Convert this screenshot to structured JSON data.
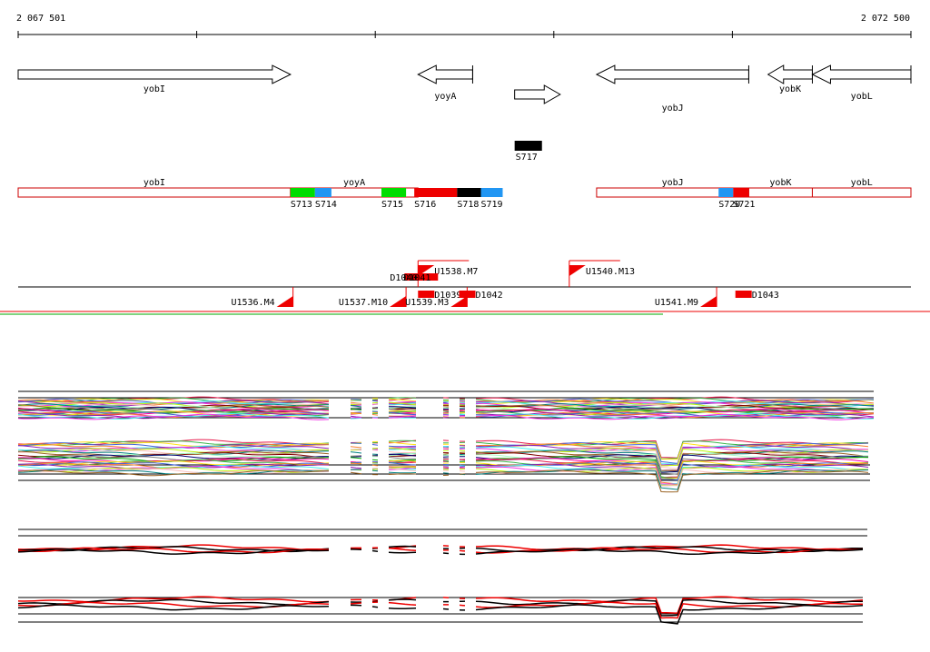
{
  "ruler": {
    "start_label": "2 067 501",
    "end_label": "2 072 500",
    "start": 2067501,
    "end": 2072500
  },
  "genes": [
    {
      "name": "yobI",
      "start": 2067501,
      "end": 2069026,
      "strand": "+"
    },
    {
      "name": "yoyA",
      "start": 2069740,
      "end": 2070046,
      "strand": "-"
    },
    {
      "name": "",
      "start": 2070281,
      "end": 2070536,
      "strand": "+"
    },
    {
      "name": "yobJ",
      "start": 2070740,
      "end": 2071592,
      "strand": "-"
    },
    {
      "name": "yobK",
      "start": 2071700,
      "end": 2071948,
      "strand": "-"
    },
    {
      "name": "yobL",
      "start": 2071948,
      "end": 2072500,
      "strand": "-"
    }
  ],
  "gene_label_rows": {
    "yobI": 0,
    "yoyA": 1,
    "yobJ": 2,
    "yobK": 0,
    "yobL": 1
  },
  "black_feature": {
    "name": "S717",
    "start": 2070281,
    "end": 2070434
  },
  "band_labels": [
    {
      "name": "yobI",
      "start": 2067501,
      "end": 2069026
    },
    {
      "name": "yoyA",
      "start": 2069026,
      "end": 2069740
    },
    {
      "name": "yobJ",
      "start": 2070740,
      "end": 2071592
    },
    {
      "name": "yobK",
      "start": 2071592,
      "end": 2071948
    },
    {
      "name": "yobL",
      "start": 2071948,
      "end": 2072500
    }
  ],
  "segments": [
    {
      "name": "S713",
      "start": 2069026,
      "end": 2069163,
      "color": "#00dd00"
    },
    {
      "name": "S714",
      "start": 2069163,
      "end": 2069255,
      "color": "#2196f3"
    },
    {
      "name": "S715",
      "start": 2069535,
      "end": 2069673,
      "color": "#00dd00"
    },
    {
      "name": "S716",
      "start": 2069719,
      "end": 2069959,
      "color": "#ee0000"
    },
    {
      "name": "S718",
      "start": 2069959,
      "end": 2070092,
      "color": "#000000"
    },
    {
      "name": "S719",
      "start": 2070092,
      "end": 2070214,
      "color": "#2196f3"
    },
    {
      "name": "S720",
      "start": 2071423,
      "end": 2071505,
      "color": "#2196f3"
    },
    {
      "name": "S721",
      "start": 2071505,
      "end": 2071592,
      "color": "#ee0000"
    }
  ],
  "promoters_top": [
    {
      "name": "U1538.M7",
      "pos": 2069740
    },
    {
      "name": "U1540.M13",
      "pos": 2070587
    }
  ],
  "promoters_bottom": [
    {
      "name": "U1536.M4",
      "pos": 2069040
    },
    {
      "name": "U1537.M10",
      "pos": 2069673
    },
    {
      "name": "U1539.M3",
      "pos": 2070015
    },
    {
      "name": "U1541.M9",
      "pos": 2071412
    }
  ],
  "terminators": [
    {
      "name": "D1040",
      "pos": 2069664,
      "strand": "top"
    },
    {
      "name": "D1041",
      "pos": 2069740,
      "strand": "top"
    },
    {
      "name": "D1039",
      "pos": 2069740,
      "strand": "bottom"
    },
    {
      "name": "D1042",
      "pos": 2069970,
      "strand": "bottom"
    },
    {
      "name": "D1043",
      "pos": 2071517,
      "strand": "bottom"
    }
  ],
  "colors": {
    "gene_outline": "#000000",
    "band_outline": "#cc0000",
    "promoter": "#ee0000",
    "coverage_red": "#ee0000",
    "coverage_black": "#000000"
  }
}
